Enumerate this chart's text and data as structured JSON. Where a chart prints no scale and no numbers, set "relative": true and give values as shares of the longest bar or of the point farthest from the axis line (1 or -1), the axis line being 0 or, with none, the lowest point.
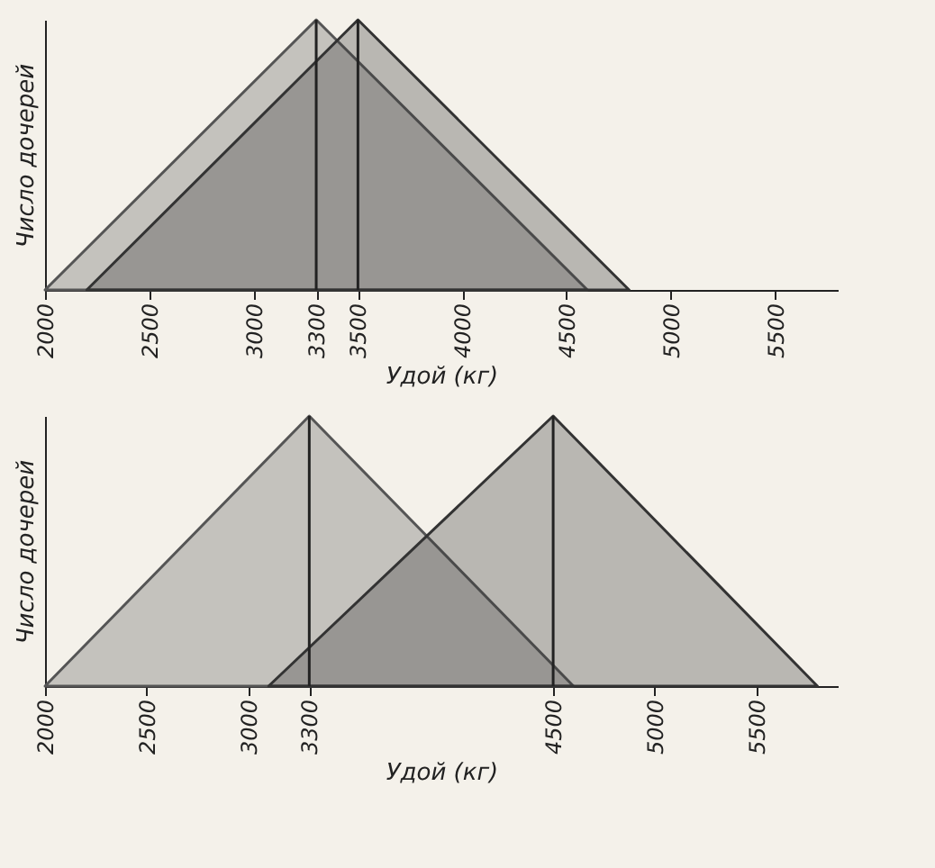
{
  "chart_data": [
    {
      "type": "area",
      "relative": true,
      "xlabel": "Удой (кг)",
      "ylabel": "Число дочерей",
      "xlim": [
        2000,
        5800
      ],
      "xticks": [
        2000,
        2500,
        3000,
        3300,
        3500,
        4000,
        4500,
        5000,
        5500
      ],
      "tick_labels": "x",
      "series": [
        {
          "color": "#555555",
          "x": [
            2000,
            3300,
            4600
          ],
          "values": [
            0,
            1,
            0
          ]
        },
        {
          "color": "#333333",
          "x": [
            2200,
            3500,
            4800
          ],
          "values": [
            0,
            1,
            0
          ]
        }
      ],
      "ref_lines": [
        {
          "axis": "x",
          "value": 3300
        },
        {
          "axis": "x",
          "value": 3500
        }
      ]
    },
    {
      "type": "area",
      "relative": true,
      "xlabel": "Удой (кг)",
      "ylabel": "Число дочерей",
      "xlim": [
        2000,
        5900
      ],
      "xticks": [
        2000,
        2500,
        3000,
        3300,
        4500,
        5000,
        5500
      ],
      "tick_labels": "x",
      "series": [
        {
          "color": "#555555",
          "x": [
            2000,
            3300,
            4600
          ],
          "values": [
            0,
            1,
            0
          ]
        },
        {
          "color": "#333333",
          "x": [
            3100,
            4500,
            5800
          ],
          "values": [
            0,
            1,
            0
          ]
        }
      ],
      "ref_lines": [
        {
          "axis": "x",
          "value": 3300
        },
        {
          "axis": "x",
          "value": 4500
        }
      ]
    }
  ]
}
